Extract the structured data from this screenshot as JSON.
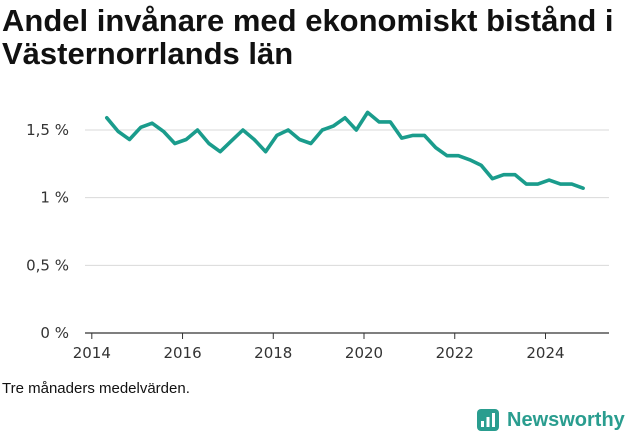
{
  "title": "Andel invånare med ekonomiskt bistånd i Västernorrlands län",
  "note": "Tre månaders medelvärden.",
  "brand": {
    "name": "Newsworthy",
    "icon": "newsworthy-logo-icon",
    "color": "#2a9d8f"
  },
  "chart_data": {
    "type": "line",
    "title": "Andel invånare med ekonomiskt bistånd i Västernorrlands län",
    "xlabel": "",
    "ylabel": "",
    "x_ticks": [
      "2014",
      "2016",
      "2018",
      "2020",
      "2022",
      "2024"
    ],
    "y_ticks": [
      "0 %",
      "0,5 %",
      "1 %",
      "1,5 %"
    ],
    "xlim": [
      2013.85,
      2025.4
    ],
    "ylim": [
      0,
      1.5
    ],
    "grid": true,
    "line_color": "#1a9c8c",
    "series": [
      {
        "x": [
          2014.33,
          2014.58,
          2014.83,
          2015.08,
          2015.33,
          2015.58,
          2015.83,
          2016.08,
          2016.33,
          2016.58,
          2016.83,
          2017.08,
          2017.33,
          2017.58,
          2017.83,
          2018.08,
          2018.33,
          2018.58,
          2018.83,
          2019.08,
          2019.33,
          2019.58,
          2019.83,
          2020.08,
          2020.33,
          2020.58,
          2020.83,
          2021.08,
          2021.33,
          2021.58,
          2021.83,
          2022.08,
          2022.33,
          2022.58,
          2022.83,
          2023.08,
          2023.33,
          2023.58,
          2023.83,
          2024.08,
          2024.33,
          2024.58,
          2024.83
        ],
        "y": [
          1.59,
          1.49,
          1.43,
          1.52,
          1.55,
          1.49,
          1.4,
          1.43,
          1.5,
          1.4,
          1.34,
          1.42,
          1.5,
          1.43,
          1.34,
          1.46,
          1.5,
          1.43,
          1.4,
          1.5,
          1.53,
          1.59,
          1.5,
          1.63,
          1.56,
          1.56,
          1.44,
          1.46,
          1.46,
          1.37,
          1.31,
          1.31,
          1.28,
          1.24,
          1.14,
          1.17,
          1.17,
          1.1,
          1.1,
          1.13,
          1.1,
          1.1,
          1.07
        ]
      }
    ]
  }
}
